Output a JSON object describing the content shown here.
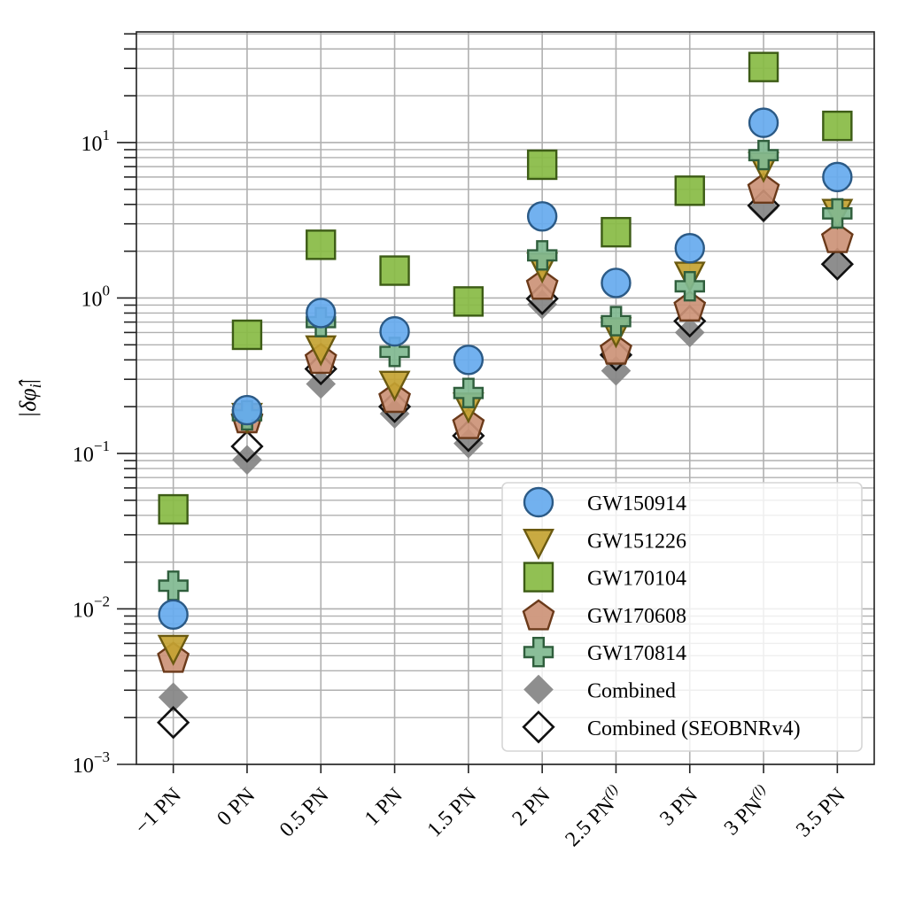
{
  "chart_data": {
    "type": "scatter",
    "title": "",
    "xlabel": "",
    "ylabel": "|δφ̂",
    "ylabel_sub": "i",
    "yscale": "log",
    "ylim": [
      0.001,
      51.5
    ],
    "grid": "major and minor",
    "legend_position": "lower-right",
    "categories": [
      {
        "main": "−1 PN",
        "sup": ""
      },
      {
        "main": "0 PN",
        "sup": ""
      },
      {
        "main": "0.5 PN",
        "sup": ""
      },
      {
        "main": "1 PN",
        "sup": ""
      },
      {
        "main": "1.5 PN",
        "sup": ""
      },
      {
        "main": "2 PN",
        "sup": ""
      },
      {
        "main": "2.5 PN",
        "sup": "(l)"
      },
      {
        "main": "3 PN",
        "sup": ""
      },
      {
        "main": "3 PN",
        "sup": "(l)"
      },
      {
        "main": "3.5 PN",
        "sup": ""
      }
    ],
    "yticks": [
      {
        "value": 0.001,
        "base": "10",
        "exp": "−3"
      },
      {
        "value": 0.01,
        "base": "10",
        "exp": "−2"
      },
      {
        "value": 0.1,
        "base": "10",
        "exp": "−1"
      },
      {
        "value": 1,
        "base": "10",
        "exp": "0"
      },
      {
        "value": 10,
        "base": "10",
        "exp": "1"
      }
    ],
    "series": [
      {
        "name": "GW150914",
        "marker": "circle",
        "fill": "#66aaee",
        "edge": "#2b5a86",
        "values": [
          0.0092,
          0.19,
          0.8,
          0.61,
          0.4,
          3.35,
          1.25,
          2.09,
          13.4,
          6.0
        ]
      },
      {
        "name": "GW151226",
        "marker": "triangle-down",
        "fill": "#c4a332",
        "edge": "#6b5a10",
        "values": [
          0.0058,
          0.18,
          0.49,
          0.29,
          0.21,
          1.67,
          0.64,
          1.46,
          7.4,
          3.7
        ]
      },
      {
        "name": "GW170104",
        "marker": "square",
        "fill": "#88bb44",
        "edge": "#3d5c16",
        "values": [
          0.0437,
          0.58,
          2.2,
          1.5,
          0.95,
          7.2,
          2.65,
          4.9,
          30.6,
          12.8
        ]
      },
      {
        "name": "GW170608",
        "marker": "pentagon",
        "fill": "#cc9377",
        "edge": "#6b3a1a",
        "values": [
          0.0049,
          0.17,
          0.41,
          0.23,
          0.156,
          1.23,
          0.47,
          0.89,
          5.1,
          2.45
        ]
      },
      {
        "name": "GW170814",
        "marker": "plus",
        "fill": "#80b890",
        "edge": "#2f5e3c",
        "values": [
          0.0141,
          0.176,
          0.7,
          0.45,
          0.245,
          1.88,
          0.71,
          1.19,
          8.3,
          3.5
        ]
      },
      {
        "name": "Combined",
        "marker": "diamond",
        "fill": "#888888",
        "edge": "#888888",
        "values": [
          0.0027,
          0.091,
          0.28,
          0.18,
          0.116,
          0.91,
          0.34,
          0.6,
          3.8,
          1.63
        ]
      },
      {
        "name": "Combined (SEOBNRv4)",
        "marker": "diamond-open",
        "fill": "none",
        "edge": "#111111",
        "values": [
          0.00186,
          0.111,
          0.35,
          0.2,
          0.13,
          0.99,
          0.43,
          0.71,
          3.93,
          1.65
        ]
      }
    ],
    "draw_order": [
      "Combined",
      "Combined (SEOBNRv4)",
      "GW170608",
      "GW151226",
      "GW170814",
      "GW150914",
      "GW170104"
    ]
  }
}
